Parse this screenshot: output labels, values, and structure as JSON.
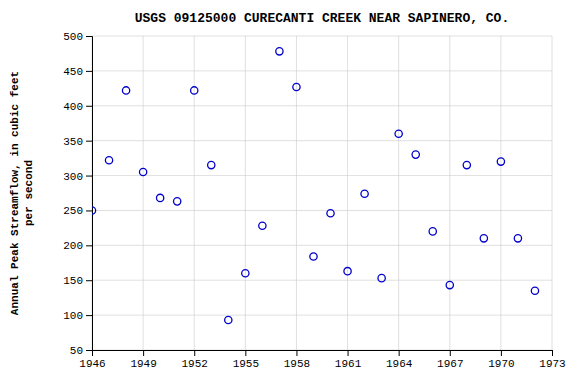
{
  "chart_data": {
    "type": "scatter",
    "title": "USGS 09125000 CURECANTI CREEK NEAR SAPINERO, CO.",
    "ylabel": [
      "Annual Peak Streamflow, in cubic feet",
      "    per second"
    ],
    "x": [
      1946,
      1947,
      1948,
      1949,
      1950,
      1951,
      1952,
      1953,
      1954,
      1955,
      1956,
      1957,
      1958,
      1959,
      1960,
      1961,
      1962,
      1963,
      1964,
      1965,
      1966,
      1967,
      1968,
      1969,
      1970,
      1971,
      1972
    ],
    "values": [
      250,
      322,
      422,
      305,
      268,
      263,
      422,
      315,
      93,
      160,
      228,
      478,
      427,
      184,
      246,
      163,
      274,
      153,
      360,
      330,
      220,
      143,
      315,
      210,
      320,
      210,
      135
    ],
    "color": "#0000CC",
    "marker": "circle",
    "xlim": [
      1946,
      1973
    ],
    "ylim": [
      50,
      500
    ],
    "xticks": [
      1946,
      1949,
      1952,
      1955,
      1958,
      1961,
      1964,
      1967,
      1970,
      1973
    ],
    "yticks": [
      50,
      100,
      150,
      200,
      250,
      300,
      350,
      400,
      450,
      500
    ],
    "grid": true
  }
}
